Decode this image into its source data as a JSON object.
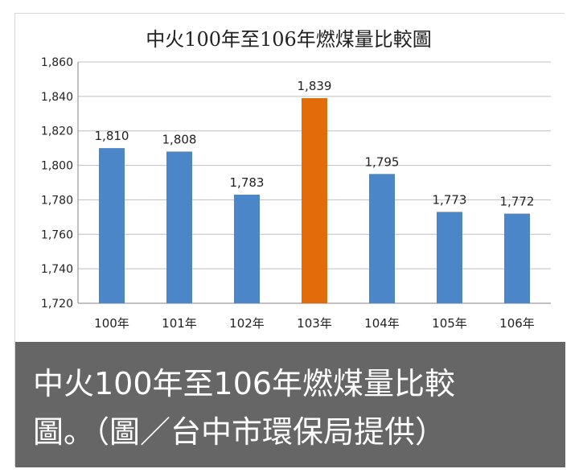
{
  "chart_data": {
    "type": "bar",
    "title": "中火100年至106年燃煤量比較圖",
    "categories": [
      "100年",
      "101年",
      "102年",
      "103年",
      "104年",
      "105年",
      "106年"
    ],
    "values": [
      1810,
      1808,
      1783,
      1839,
      1795,
      1773,
      1772
    ],
    "data_labels": [
      "1,810",
      "1,808",
      "1,783",
      "1,839",
      "1,795",
      "1,773",
      "1,772"
    ],
    "ylim": [
      1720,
      1860
    ],
    "yticks": [
      1720,
      1740,
      1760,
      1780,
      1800,
      1820,
      1840,
      1860
    ],
    "ytick_labels": [
      "1,720",
      "1,740",
      "1,760",
      "1,780",
      "1,800",
      "1,820",
      "1,840",
      "1,860"
    ],
    "grid": true,
    "colors": {
      "default": "#4a86c8",
      "highlight": "#e26b0a",
      "highlight_index": 3
    }
  },
  "caption": {
    "line1": "中火100年至106年燃煤量比較",
    "line2": "圖。（圖／台中市環保局提供）"
  }
}
